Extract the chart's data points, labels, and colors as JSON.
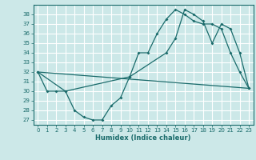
{
  "xlabel": "Humidex (Indice chaleur)",
  "bg_color": "#cce8e8",
  "grid_color": "#ffffff",
  "line_color": "#1a6b6b",
  "xlim": [
    -0.5,
    23.5
  ],
  "ylim": [
    26.5,
    39.0
  ],
  "yticks": [
    27,
    28,
    29,
    30,
    31,
    32,
    33,
    34,
    35,
    36,
    37,
    38
  ],
  "xticks": [
    0,
    1,
    2,
    3,
    4,
    5,
    6,
    7,
    8,
    9,
    10,
    11,
    12,
    13,
    14,
    15,
    16,
    17,
    18,
    19,
    20,
    21,
    22,
    23
  ],
  "line1_x": [
    0,
    1,
    2,
    3,
    4,
    5,
    6,
    7,
    8,
    9,
    10,
    11,
    12,
    13,
    14,
    15,
    16,
    17,
    18,
    19,
    20,
    21,
    22,
    23
  ],
  "line1_y": [
    32,
    30,
    30,
    30,
    28,
    27.3,
    27,
    27,
    28.5,
    29.3,
    31.5,
    34,
    34,
    36,
    37.5,
    38.5,
    38,
    37.3,
    37,
    37,
    36.5,
    34,
    32,
    30.3
  ],
  "line2_x": [
    0,
    23
  ],
  "line2_y": [
    32,
    30.3
  ],
  "line3_x": [
    0,
    3,
    10,
    14,
    15,
    16,
    17,
    18,
    19,
    20,
    21,
    22,
    23
  ],
  "line3_y": [
    32,
    30,
    31.5,
    34,
    35.5,
    38.5,
    38,
    37.3,
    35,
    37,
    36.5,
    34,
    30.3
  ]
}
